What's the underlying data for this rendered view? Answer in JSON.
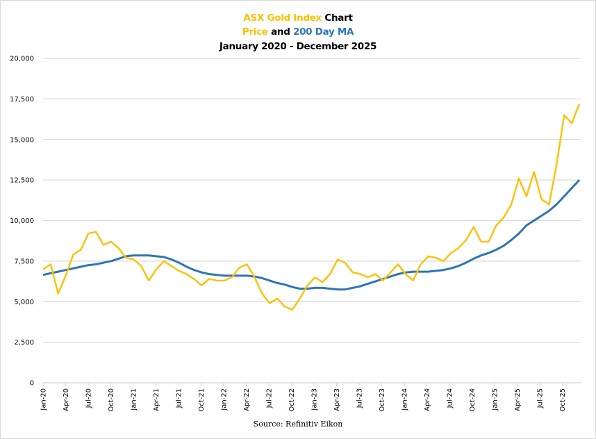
{
  "chart_data": {
    "type": "line",
    "title_lines": [
      [
        {
          "text": "ASX Gold Index",
          "color": "#ffc000"
        },
        {
          "text": " Chart",
          "color": "#000000"
        }
      ],
      [
        {
          "text": "Price",
          "color": "#ffc000"
        },
        {
          "text": " and ",
          "color": "#000000"
        },
        {
          "text": "200 Day MA",
          "color": "#2e75b6"
        }
      ],
      [
        {
          "text": "January 2020 - December 2025",
          "color": "#000000"
        }
      ]
    ],
    "xlabel": "",
    "ylabel": "",
    "ylim": [
      0,
      20000
    ],
    "yticks": [
      "0",
      "2,500",
      "5,000",
      "7,500",
      "10,000",
      "12,500",
      "15,000",
      "17,500",
      "20,000"
    ],
    "ytick_values": [
      0,
      2500,
      5000,
      7500,
      10000,
      12500,
      15000,
      17500,
      20000
    ],
    "xticks": [
      "Jan-20",
      "Apr-20",
      "Jul-20",
      "Oct-20",
      "Jan-21",
      "Apr-21",
      "Jul-21",
      "Oct-21",
      "Jan-22",
      "Apr-22",
      "Jul-22",
      "Oct-22",
      "Jan-23",
      "Apr-23",
      "Jul-23",
      "Oct-23",
      "Jan-24",
      "Apr-24",
      "Jul-24",
      "Oct-24",
      "Jan-25",
      "Apr-25",
      "Jul-25",
      "Oct-25"
    ],
    "grid": true,
    "legend": "none",
    "x": [
      "Jan-20",
      "Feb-20",
      "Mar-20",
      "Apr-20",
      "May-20",
      "Jun-20",
      "Jul-20",
      "Aug-20",
      "Sep-20",
      "Oct-20",
      "Nov-20",
      "Dec-20",
      "Jan-21",
      "Feb-21",
      "Mar-21",
      "Apr-21",
      "May-21",
      "Jun-21",
      "Jul-21",
      "Aug-21",
      "Sep-21",
      "Oct-21",
      "Nov-21",
      "Dec-21",
      "Jan-22",
      "Feb-22",
      "Mar-22",
      "Apr-22",
      "May-22",
      "Jun-22",
      "Jul-22",
      "Aug-22",
      "Sep-22",
      "Oct-22",
      "Nov-22",
      "Dec-22",
      "Jan-23",
      "Feb-23",
      "Mar-23",
      "Apr-23",
      "May-23",
      "Jun-23",
      "Jul-23",
      "Aug-23",
      "Sep-23",
      "Oct-23",
      "Nov-23",
      "Dec-23",
      "Jan-24",
      "Feb-24",
      "Mar-24",
      "Apr-24",
      "May-24",
      "Jun-24",
      "Jul-24",
      "Aug-24",
      "Sep-24",
      "Oct-24",
      "Nov-24",
      "Dec-24",
      "Jan-25",
      "Feb-25",
      "Mar-25",
      "Apr-25",
      "May-25",
      "Jun-25",
      "Jul-25",
      "Aug-25",
      "Sep-25",
      "Oct-25",
      "Nov-25",
      "Dec-25"
    ],
    "series": [
      {
        "name": "Price",
        "color": "#ffc000",
        "values": [
          7000,
          7300,
          5500,
          6600,
          7900,
          8200,
          9200,
          9300,
          8500,
          8700,
          8300,
          7700,
          7600,
          7200,
          6300,
          7000,
          7500,
          7200,
          6900,
          6700,
          6400,
          6000,
          6400,
          6300,
          6300,
          6500,
          7100,
          7300,
          6500,
          5500,
          4900,
          5200,
          4700,
          4500,
          5200,
          6000,
          6500,
          6200,
          6700,
          7600,
          7400,
          6800,
          6700,
          6500,
          6700,
          6300,
          6800,
          7300,
          6700,
          6300,
          7300,
          7800,
          7700,
          7500,
          8000,
          8300,
          8800,
          9600,
          8700,
          8700,
          9700,
          10200,
          11000,
          12600,
          11500,
          13000,
          11300,
          11000,
          13500,
          16500,
          16000,
          17200
        ]
      },
      {
        "name": "200 Day MA",
        "color": "#2e75b6",
        "values": [
          6650,
          6750,
          6850,
          6950,
          7050,
          7150,
          7250,
          7300,
          7400,
          7500,
          7650,
          7800,
          7850,
          7850,
          7850,
          7800,
          7750,
          7600,
          7400,
          7150,
          6950,
          6800,
          6700,
          6650,
          6600,
          6600,
          6600,
          6600,
          6550,
          6450,
          6300,
          6150,
          6050,
          5900,
          5800,
          5800,
          5850,
          5850,
          5800,
          5750,
          5750,
          5850,
          5950,
          6100,
          6250,
          6400,
          6550,
          6700,
          6800,
          6850,
          6850,
          6850,
          6900,
          6950,
          7050,
          7200,
          7400,
          7650,
          7850,
          8000,
          8200,
          8450,
          8800,
          9200,
          9700,
          10000,
          10300,
          10600,
          11000,
          11500,
          12000,
          12500
        ]
      }
    ],
    "annotation": "Source: Refinitiv Eikon"
  }
}
